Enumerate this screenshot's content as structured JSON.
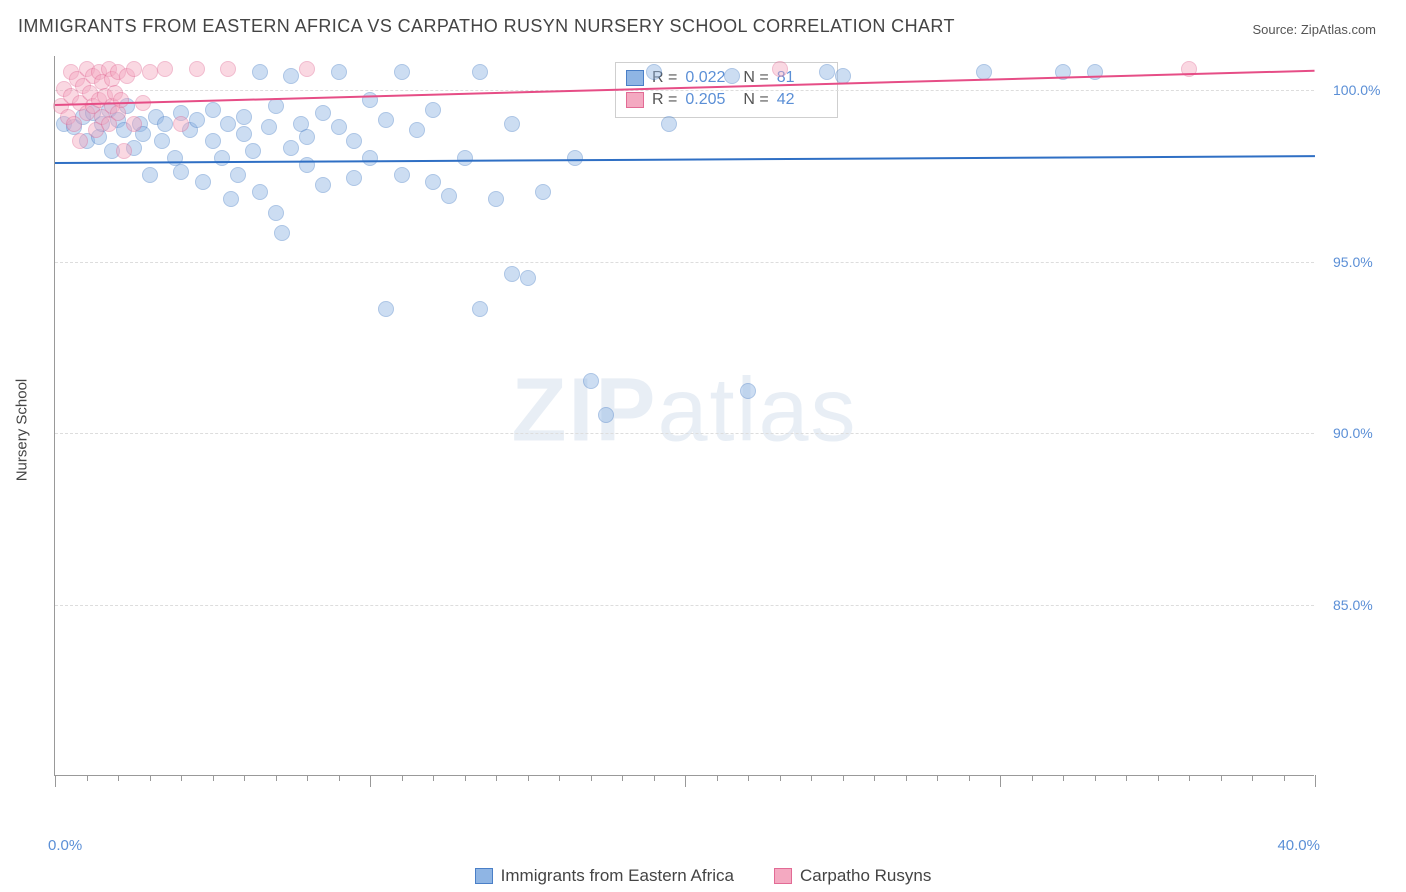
{
  "meta": {
    "title": "IMMIGRANTS FROM EASTERN AFRICA VS CARPATHO RUSYN NURSERY SCHOOL CORRELATION CHART",
    "source_label": "Source: ZipAtlas.com",
    "watermark_a": "ZIP",
    "watermark_b": "atlas"
  },
  "chart": {
    "type": "scatter",
    "ylabel": "Nursery School",
    "xlim": [
      0,
      40
    ],
    "ylim": [
      80,
      101
    ],
    "yticks": [
      {
        "v": 100,
        "label": "100.0%"
      },
      {
        "v": 95,
        "label": "95.0%"
      },
      {
        "v": 90,
        "label": "90.0%"
      },
      {
        "v": 85,
        "label": "85.0%"
      }
    ],
    "xticks_major": [
      0,
      10,
      20,
      30,
      40
    ],
    "xticks_minor_step": 1,
    "xaxis_start_label": "0.0%",
    "xaxis_end_label": "40.0%",
    "ytick_color": "#5b8fd6",
    "xend_color": "#5b8fd6",
    "grid_color": "#dddddd",
    "axis_color": "#999999",
    "background_color": "#ffffff",
    "marker_radius": 8,
    "marker_opacity": 0.45,
    "series": [
      {
        "id": "blue",
        "name": "Immigrants from Eastern Africa",
        "fill": "#8fb5e4",
        "stroke": "#4a7fc7",
        "trend_color": "#2f6fc4",
        "R_label": "R = ",
        "R": "0.022",
        "N_label": "N = ",
        "N": "81",
        "trend": {
          "y_at_xmin": 97.9,
          "y_at_xmax": 98.1
        },
        "points": [
          {
            "x": 0.3,
            "y": 99.0
          },
          {
            "x": 0.6,
            "y": 98.9
          },
          {
            "x": 0.9,
            "y": 99.2
          },
          {
            "x": 1.0,
            "y": 98.5
          },
          {
            "x": 1.2,
            "y": 99.3
          },
          {
            "x": 1.4,
            "y": 98.6
          },
          {
            "x": 1.5,
            "y": 99.0
          },
          {
            "x": 1.7,
            "y": 99.4
          },
          {
            "x": 1.8,
            "y": 98.2
          },
          {
            "x": 2.0,
            "y": 99.1
          },
          {
            "x": 2.2,
            "y": 98.8
          },
          {
            "x": 2.3,
            "y": 99.5
          },
          {
            "x": 2.5,
            "y": 98.3
          },
          {
            "x": 2.7,
            "y": 99.0
          },
          {
            "x": 2.8,
            "y": 98.7
          },
          {
            "x": 3.0,
            "y": 97.5
          },
          {
            "x": 3.2,
            "y": 99.2
          },
          {
            "x": 3.4,
            "y": 98.5
          },
          {
            "x": 3.5,
            "y": 99.0
          },
          {
            "x": 3.8,
            "y": 98.0
          },
          {
            "x": 4.0,
            "y": 99.3
          },
          {
            "x": 4.0,
            "y": 97.6
          },
          {
            "x": 4.3,
            "y": 98.8
          },
          {
            "x": 4.5,
            "y": 99.1
          },
          {
            "x": 4.7,
            "y": 97.3
          },
          {
            "x": 5.0,
            "y": 98.5
          },
          {
            "x": 5.0,
            "y": 99.4
          },
          {
            "x": 5.3,
            "y": 98.0
          },
          {
            "x": 5.5,
            "y": 99.0
          },
          {
            "x": 5.6,
            "y": 96.8
          },
          {
            "x": 5.8,
            "y": 97.5
          },
          {
            "x": 6.0,
            "y": 98.7
          },
          {
            "x": 6.0,
            "y": 99.2
          },
          {
            "x": 6.3,
            "y": 98.2
          },
          {
            "x": 6.5,
            "y": 97.0
          },
          {
            "x": 6.5,
            "y": 100.5
          },
          {
            "x": 6.8,
            "y": 98.9
          },
          {
            "x": 7.0,
            "y": 99.5
          },
          {
            "x": 7.0,
            "y": 96.4
          },
          {
            "x": 7.2,
            "y": 95.8
          },
          {
            "x": 7.5,
            "y": 98.3
          },
          {
            "x": 7.5,
            "y": 100.4
          },
          {
            "x": 7.8,
            "y": 99.0
          },
          {
            "x": 8.0,
            "y": 97.8
          },
          {
            "x": 8.0,
            "y": 98.6
          },
          {
            "x": 8.5,
            "y": 99.3
          },
          {
            "x": 8.5,
            "y": 97.2
          },
          {
            "x": 9.0,
            "y": 98.9
          },
          {
            "x": 9.0,
            "y": 100.5
          },
          {
            "x": 9.5,
            "y": 97.4
          },
          {
            "x": 9.5,
            "y": 98.5
          },
          {
            "x": 10.0,
            "y": 99.7
          },
          {
            "x": 10.0,
            "y": 98.0
          },
          {
            "x": 10.5,
            "y": 99.1
          },
          {
            "x": 10.5,
            "y": 93.6
          },
          {
            "x": 11.0,
            "y": 97.5
          },
          {
            "x": 11.0,
            "y": 100.5
          },
          {
            "x": 11.5,
            "y": 98.8
          },
          {
            "x": 12.0,
            "y": 97.3
          },
          {
            "x": 12.0,
            "y": 99.4
          },
          {
            "x": 12.5,
            "y": 96.9
          },
          {
            "x": 13.0,
            "y": 98.0
          },
          {
            "x": 13.5,
            "y": 100.5
          },
          {
            "x": 13.5,
            "y": 93.6
          },
          {
            "x": 14.0,
            "y": 96.8
          },
          {
            "x": 14.5,
            "y": 94.6
          },
          {
            "x": 14.5,
            "y": 99.0
          },
          {
            "x": 15.0,
            "y": 94.5
          },
          {
            "x": 15.5,
            "y": 97.0
          },
          {
            "x": 16.5,
            "y": 98.0
          },
          {
            "x": 17.0,
            "y": 91.5
          },
          {
            "x": 17.5,
            "y": 90.5
          },
          {
            "x": 19.0,
            "y": 100.5
          },
          {
            "x": 19.5,
            "y": 99.0
          },
          {
            "x": 21.5,
            "y": 100.4
          },
          {
            "x": 22.0,
            "y": 91.2
          },
          {
            "x": 24.5,
            "y": 100.5
          },
          {
            "x": 25.0,
            "y": 100.4
          },
          {
            "x": 29.5,
            "y": 100.5
          },
          {
            "x": 32.0,
            "y": 100.5
          },
          {
            "x": 33.0,
            "y": 100.5
          }
        ]
      },
      {
        "id": "pink",
        "name": "Carpatho Rusyns",
        "fill": "#f4a9c1",
        "stroke": "#e26b95",
        "trend_color": "#e64d86",
        "R_label": "R = ",
        "R": "0.205",
        "N_label": "N = ",
        "N": "42",
        "trend": {
          "y_at_xmin": 99.6,
          "y_at_xmax": 100.6
        },
        "points": [
          {
            "x": 0.2,
            "y": 99.5
          },
          {
            "x": 0.3,
            "y": 100.0
          },
          {
            "x": 0.4,
            "y": 99.2
          },
          {
            "x": 0.5,
            "y": 100.5
          },
          {
            "x": 0.5,
            "y": 99.8
          },
          {
            "x": 0.6,
            "y": 99.0
          },
          {
            "x": 0.7,
            "y": 100.3
          },
          {
            "x": 0.8,
            "y": 99.6
          },
          {
            "x": 0.8,
            "y": 98.5
          },
          {
            "x": 0.9,
            "y": 100.1
          },
          {
            "x": 1.0,
            "y": 99.3
          },
          {
            "x": 1.0,
            "y": 100.6
          },
          {
            "x": 1.1,
            "y": 99.9
          },
          {
            "x": 1.2,
            "y": 99.5
          },
          {
            "x": 1.2,
            "y": 100.4
          },
          {
            "x": 1.3,
            "y": 98.8
          },
          {
            "x": 1.4,
            "y": 99.7
          },
          {
            "x": 1.4,
            "y": 100.5
          },
          {
            "x": 1.5,
            "y": 99.2
          },
          {
            "x": 1.5,
            "y": 100.2
          },
          {
            "x": 1.6,
            "y": 99.8
          },
          {
            "x": 1.7,
            "y": 99.0
          },
          {
            "x": 1.7,
            "y": 100.6
          },
          {
            "x": 1.8,
            "y": 99.5
          },
          {
            "x": 1.8,
            "y": 100.3
          },
          {
            "x": 1.9,
            "y": 99.9
          },
          {
            "x": 2.0,
            "y": 99.3
          },
          {
            "x": 2.0,
            "y": 100.5
          },
          {
            "x": 2.1,
            "y": 99.7
          },
          {
            "x": 2.2,
            "y": 98.2
          },
          {
            "x": 2.3,
            "y": 100.4
          },
          {
            "x": 2.5,
            "y": 99.0
          },
          {
            "x": 2.5,
            "y": 100.6
          },
          {
            "x": 2.8,
            "y": 99.6
          },
          {
            "x": 3.0,
            "y": 100.5
          },
          {
            "x": 3.5,
            "y": 100.6
          },
          {
            "x": 4.0,
            "y": 99.0
          },
          {
            "x": 4.5,
            "y": 100.6
          },
          {
            "x": 5.5,
            "y": 100.6
          },
          {
            "x": 8.0,
            "y": 100.6
          },
          {
            "x": 23.0,
            "y": 100.6
          },
          {
            "x": 36.0,
            "y": 100.6
          }
        ]
      }
    ],
    "legend": {
      "item1": "Immigrants from Eastern Africa",
      "item2": "Carpatho Rusyns"
    }
  }
}
